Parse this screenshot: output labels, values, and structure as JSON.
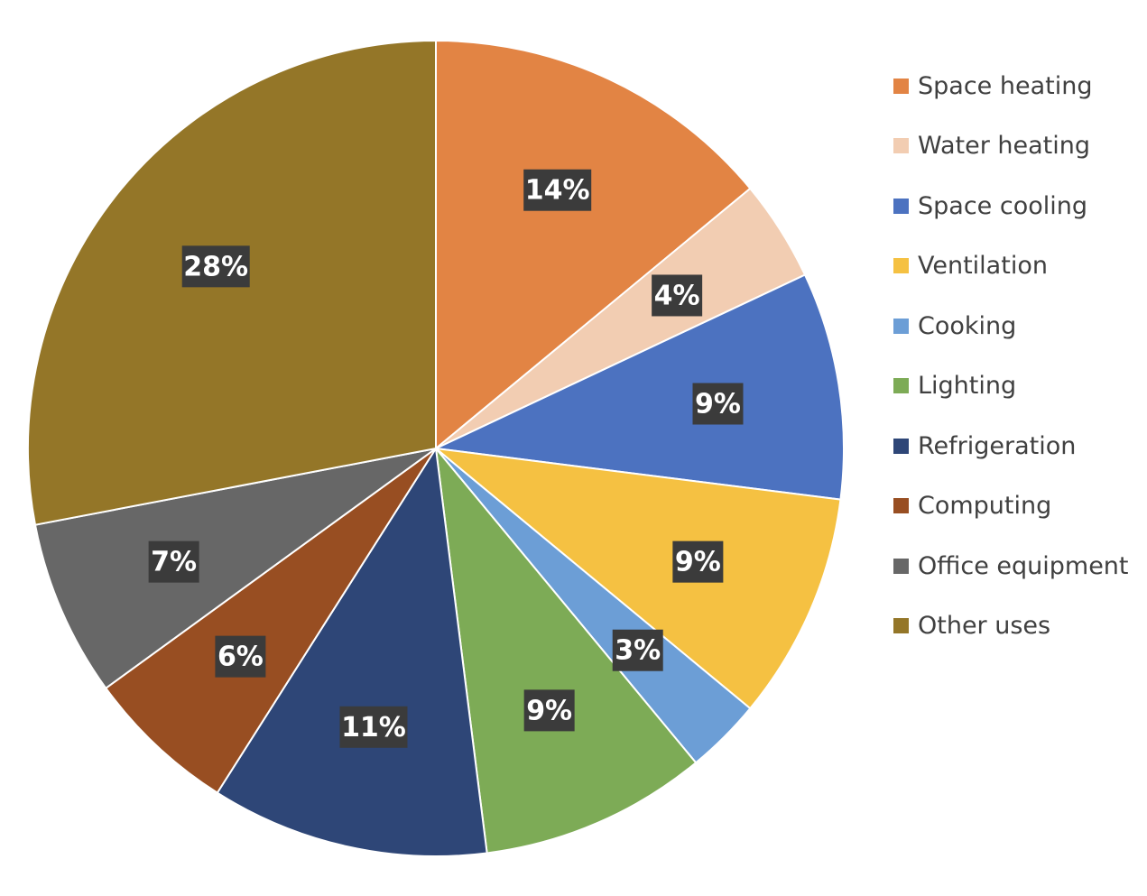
{
  "chart_data": {
    "type": "pie",
    "title": "",
    "legend_position": "right",
    "slices": [
      {
        "name": "Space heating",
        "value": 14,
        "label": "14%",
        "color": "#E28444"
      },
      {
        "name": "Water heating",
        "value": 4,
        "label": "4%",
        "color": "#F2CDB2"
      },
      {
        "name": "Space cooling",
        "value": 9,
        "label": "9%",
        "color": "#4C72C0"
      },
      {
        "name": "Ventilation",
        "value": 9,
        "label": "9%",
        "color": "#F5C142"
      },
      {
        "name": "Cooking",
        "value": 3,
        "label": "3%",
        "color": "#6C9ED6"
      },
      {
        "name": "Lighting",
        "value": 9,
        "label": "9%",
        "color": "#7DAB56"
      },
      {
        "name": "Refrigeration",
        "value": 11,
        "label": "11%",
        "color": "#2E4677"
      },
      {
        "name": "Computing",
        "value": 6,
        "label": "6%",
        "color": "#984E22"
      },
      {
        "name": "Office equipment",
        "value": 7,
        "label": "7%",
        "color": "#676767"
      },
      {
        "name": "Other uses",
        "value": 28,
        "label": "28%",
        "color": "#947628"
      }
    ]
  }
}
